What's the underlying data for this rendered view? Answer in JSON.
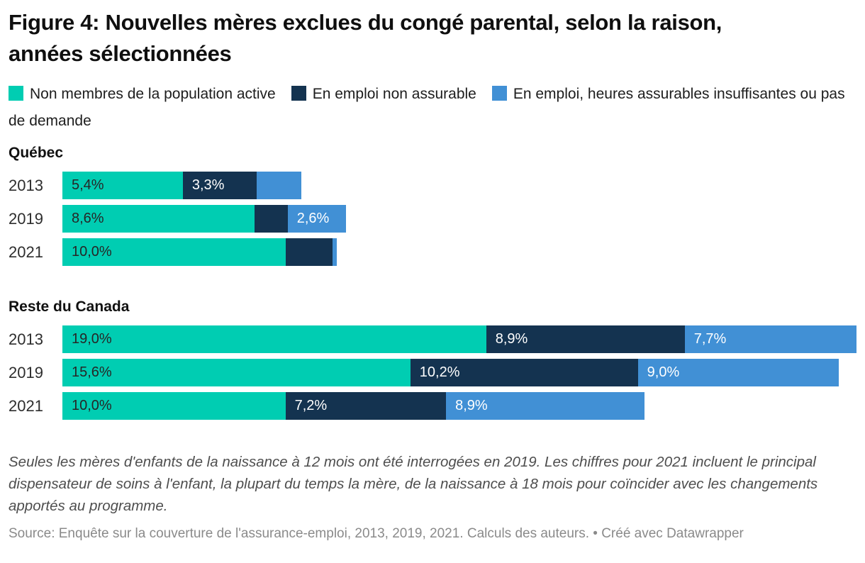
{
  "header": {
    "title": "Figure 4: Nouvelles mères exclues du congé parental, selon la raison, années sélectionnées"
  },
  "legend": {
    "items": [
      {
        "label": "Non membres de la population active",
        "color": "#00CDB2"
      },
      {
        "label": "En emploi non assurable",
        "color": "#143350"
      },
      {
        "label": "En emploi, heures assurables insuffisantes ou pas de demande",
        "color": "#4190D5"
      }
    ]
  },
  "chart_data": {
    "type": "bar",
    "orientation": "horizontal",
    "stacked": true,
    "value_unit": "%",
    "axis_hidden": true,
    "xlim": [
      0,
      35.6
    ],
    "grid": false,
    "series": [
      "Non membres de la population active",
      "En emploi non assurable",
      "En emploi, heures assurables insuffisantes ou pas de demande"
    ],
    "colors": [
      "#00CDB2",
      "#143350",
      "#4190D5"
    ],
    "label_colors": [
      "#262626",
      "#ffffff",
      "#ffffff"
    ],
    "groups": [
      {
        "name": "Québec",
        "rows": [
          {
            "year": "2013",
            "values": [
              5.4,
              3.3,
              2.0
            ],
            "labels": [
              "5,4%",
              "3,3%",
              ""
            ]
          },
          {
            "year": "2019",
            "values": [
              8.6,
              1.5,
              2.6
            ],
            "labels": [
              "8,6%",
              "",
              "2,6%"
            ]
          },
          {
            "year": "2021",
            "values": [
              10.0,
              2.1,
              0.2
            ],
            "labels": [
              "10,0%",
              "",
              ""
            ]
          }
        ]
      },
      {
        "name": "Reste du Canada",
        "rows": [
          {
            "year": "2013",
            "values": [
              19.0,
              8.9,
              7.7
            ],
            "labels": [
              "19,0%",
              "8,9%",
              "7,7%"
            ]
          },
          {
            "year": "2019",
            "values": [
              15.6,
              10.2,
              9.0
            ],
            "labels": [
              "15,6%",
              "10,2%",
              "9,0%"
            ]
          },
          {
            "year": "2021",
            "values": [
              10.0,
              7.2,
              8.9
            ],
            "labels": [
              "10,0%",
              "7,2%",
              "8,9%"
            ]
          }
        ]
      }
    ]
  },
  "notes": {
    "footnote": "Seules les mères d'enfants de la naissance à 12 mois ont été interrogées en 2019. Les chiffres pour 2021 incluent le principal dispensateur de soins à l'enfant, la plupart du temps la mère, de la naissance à 18 mois pour coïncider avec les changements apportés au programme.",
    "source_line": "Source: Enquête sur la couverture de l'assurance-emploi, 2013, 2019, 2021. Calculs des auteurs. • Créé avec Datawrapper"
  }
}
